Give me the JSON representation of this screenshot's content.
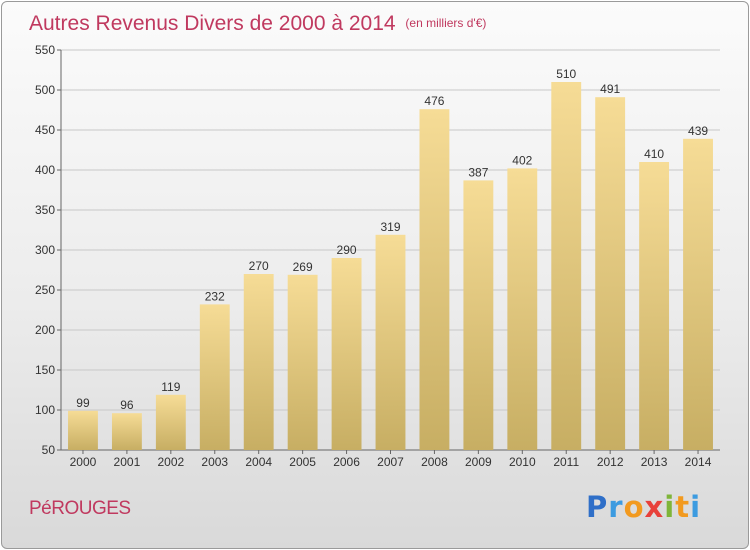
{
  "title": "Autres Revenus Divers de 2000 à 2014",
  "unit": "(en milliers d'€)",
  "commune": "PéROUGES",
  "logo": {
    "letters": [
      {
        "ch": "P",
        "color": "#2f6fc8"
      },
      {
        "ch": "r",
        "color": "#3c9be0"
      },
      {
        "ch": "o",
        "color": "#f29a1f"
      },
      {
        "ch": "x",
        "color": "#e8413b"
      },
      {
        "ch": "i",
        "color": "#7fb539"
      },
      {
        "ch": "t",
        "color": "#f29a1f"
      },
      {
        "ch": "i",
        "color": "#3c9be0"
      }
    ]
  },
  "colors": {
    "accent": "#c0395f",
    "bar_top": "#f6dc96",
    "bar_bottom": "#c7ae63",
    "grid": "#c8c8c8"
  },
  "chart_data": {
    "type": "bar",
    "categories": [
      "2000",
      "2001",
      "2002",
      "2003",
      "2004",
      "2005",
      "2006",
      "2007",
      "2008",
      "2009",
      "2010",
      "2011",
      "2012",
      "2013",
      "2014"
    ],
    "values": [
      99,
      96,
      119,
      232,
      270,
      269,
      290,
      319,
      476,
      387,
      402,
      510,
      491,
      410,
      439
    ],
    "title": "Autres Revenus Divers de 2000 à 2014",
    "ylim": [
      50,
      550
    ],
    "yticks": [
      50,
      100,
      150,
      200,
      250,
      300,
      350,
      400,
      450,
      500,
      550
    ],
    "grid": true
  }
}
